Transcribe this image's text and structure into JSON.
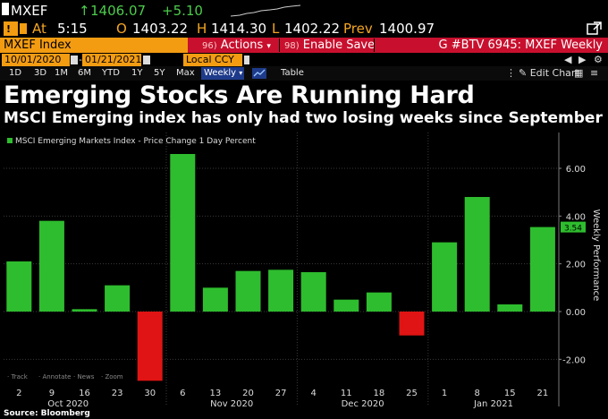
{
  "ticker": {
    "symbol": "MXEF",
    "price": "1406.07",
    "change": "+5.10",
    "time_label": "At",
    "time": "5:15",
    "open_label": "O",
    "open": "1403.22",
    "high_label": "H",
    "high": "1414.30",
    "low_label": "L",
    "low": "1402.22",
    "prev_label": "Prev",
    "prev": "1400.97"
  },
  "security_bar": {
    "name": "MXEF Index",
    "actions_num": "96)",
    "actions_label": "Actions",
    "save_num": "98)",
    "save_label": "Enable Save",
    "function_label": "G #BTV 6945: MXEF Weekly"
  },
  "date_row": {
    "start": "10/01/2020",
    "end": "01/21/2021",
    "currency": "Local CCY"
  },
  "period_row": {
    "periods": [
      "1D",
      "3D",
      "1M",
      "6M",
      "YTD",
      "1Y",
      "5Y",
      "Max"
    ],
    "frequency": "Weekly",
    "table_label": "Table",
    "edit_chart_label": "Edit Chart"
  },
  "headline": "Emerging Stocks Are Running Hard",
  "subheadline": "MSCI Emerging index has only had two losing weeks since September",
  "source": "Source: Bloomberg",
  "colors": {
    "positive": "#2ebd2e",
    "negative": "#e01414",
    "accent": "#f39c12",
    "bar_red": "#c8102e"
  },
  "chart_data": {
    "type": "bar",
    "series": [
      {
        "name": "MSCI Emerging Markets Index - Price Change 1 Day Percent",
        "values": [
          2.1,
          3.8,
          0.1,
          1.1,
          -2.9,
          6.6,
          1.0,
          1.7,
          1.75,
          1.65,
          0.5,
          0.8,
          -1.0,
          2.9,
          4.8,
          0.3,
          3.54
        ]
      }
    ],
    "categories": [
      "2",
      "9",
      "16",
      "23",
      "30",
      "6",
      "13",
      "20",
      "27",
      "4",
      "11",
      "18",
      "25",
      "1",
      "8",
      "15",
      "21"
    ],
    "month_labels": [
      {
        "label": "Oct 2020",
        "index": 1.5
      },
      {
        "label": "Nov 2020",
        "index": 6.5
      },
      {
        "label": "Dec 2020",
        "index": 10.5
      },
      {
        "label": "Jan 2021",
        "index": 14.5
      }
    ],
    "ylabel": "Weekly Performance",
    "ylim": [
      -3.0,
      7.5
    ],
    "yticks": [
      "6.00",
      "4.00",
      "2.00",
      "0.00",
      "-2.00"
    ],
    "ytick_values": [
      6,
      4,
      2,
      0,
      -2
    ],
    "last_value_label": "3.54",
    "legend_position": "top-left",
    "toolbar_items": [
      "Track",
      "Annotate",
      "News",
      "Zoom"
    ]
  }
}
